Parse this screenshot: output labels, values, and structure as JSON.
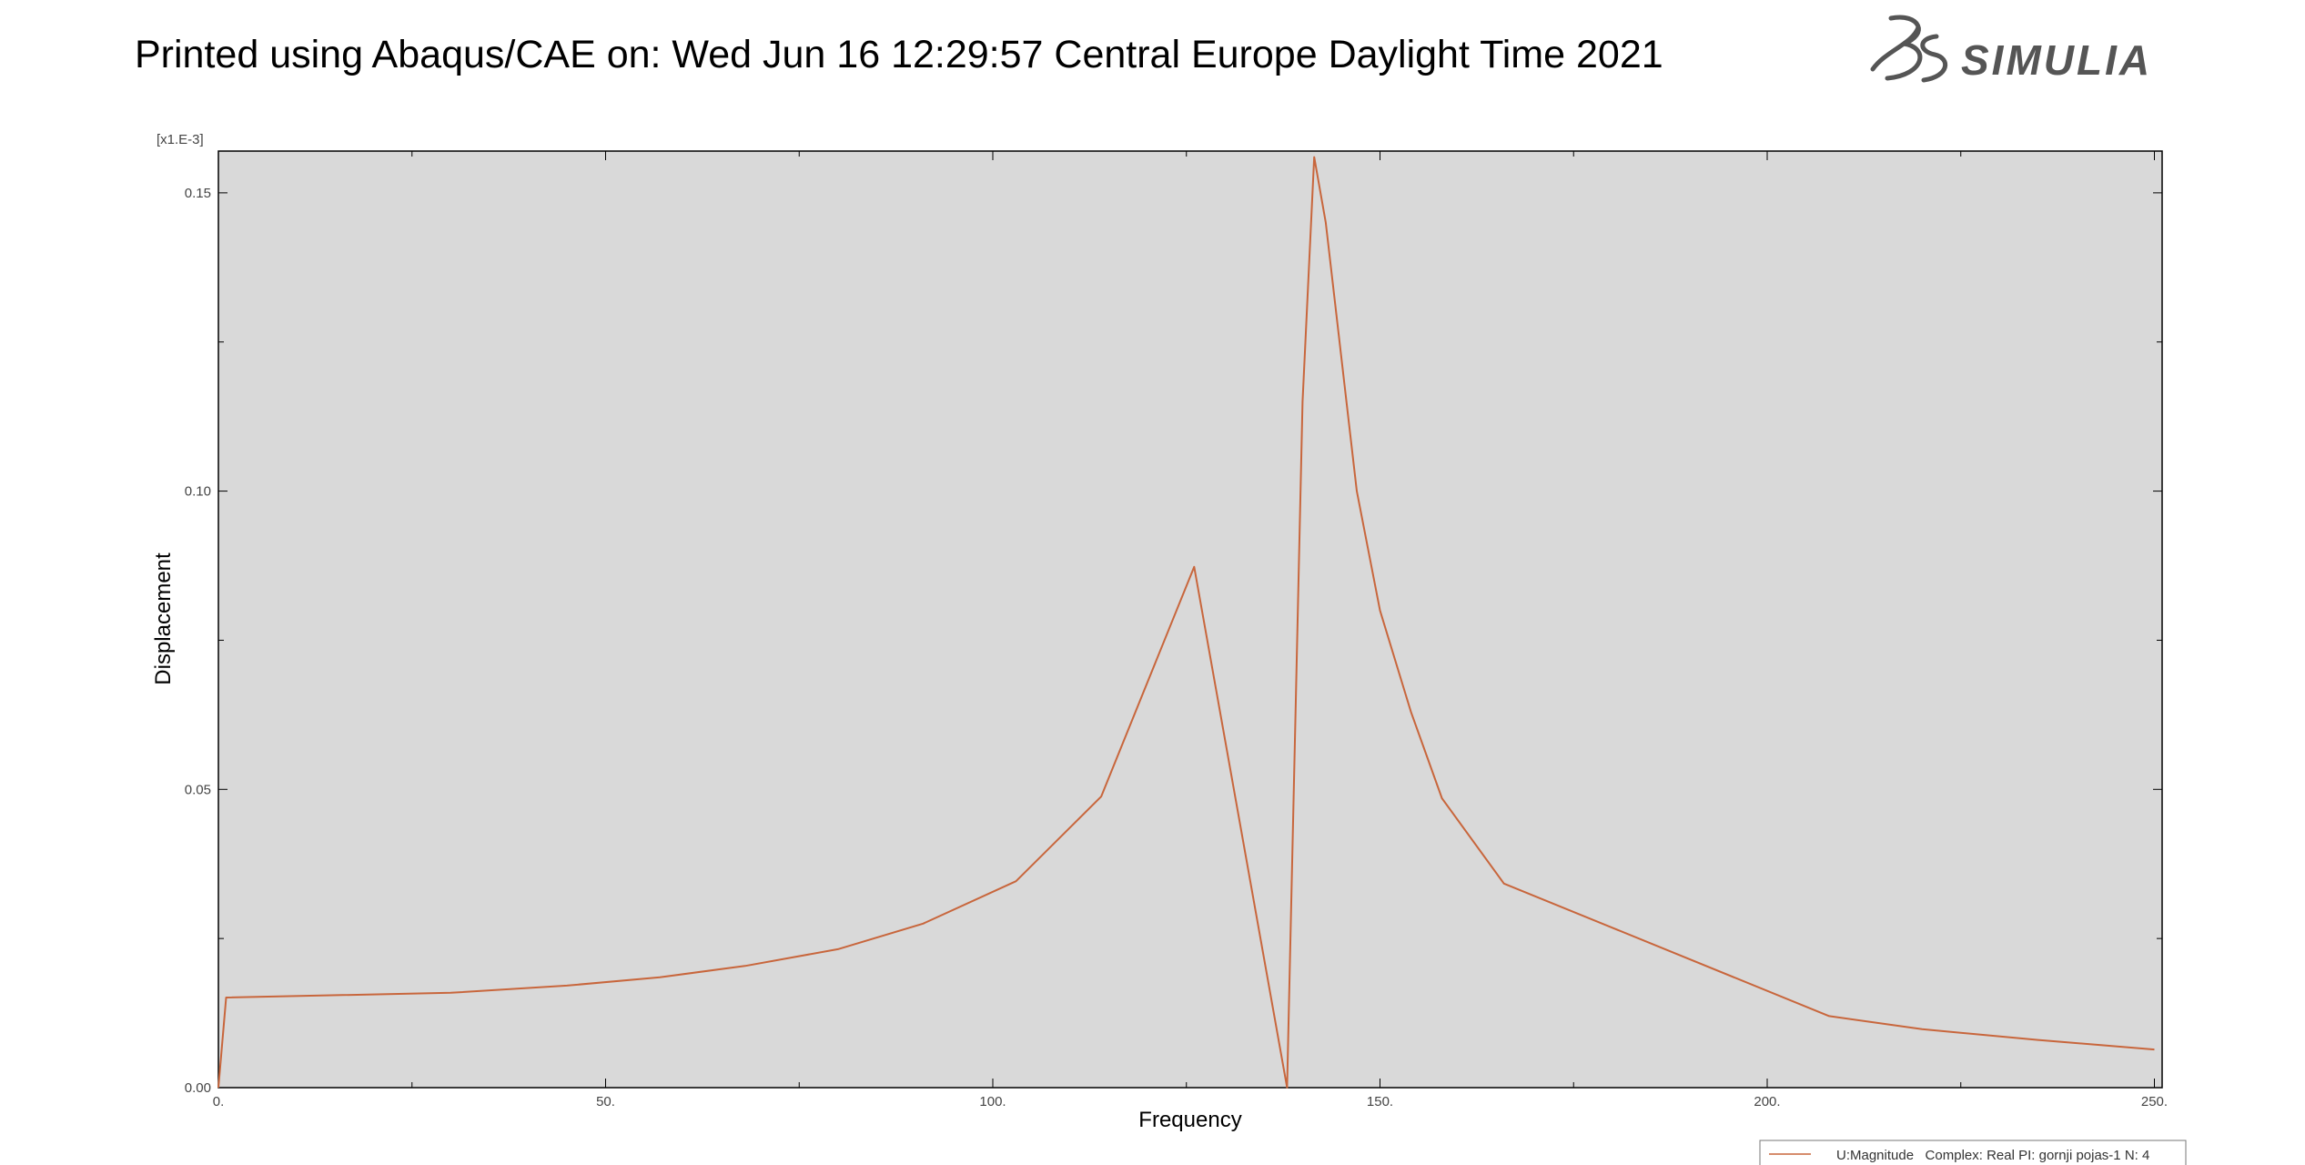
{
  "header": {
    "title": "Printed using Abaqus/CAE on: Wed Jun 16 12:29:57 Central Europe Daylight Time 2021",
    "logo_text": "SIMULIA"
  },
  "colors": {
    "plot_background": "#d9d9d9",
    "series_line": "#c8663c",
    "axis": "#000000",
    "tick_text": "#444444"
  },
  "chart_data": {
    "type": "line",
    "title": "",
    "xlabel": "Frequency",
    "ylabel": "Displacement",
    "y_multiplier_label": "[x1.E-3]",
    "xlim": [
      0,
      251
    ],
    "ylim": [
      0,
      0.157
    ],
    "x_ticks": [
      0,
      50,
      100,
      150,
      200,
      250
    ],
    "x_tick_labels": [
      "0.",
      "50.",
      "100.",
      "150.",
      "200.",
      "250."
    ],
    "y_ticks": [
      0,
      0.05,
      0.1,
      0.15
    ],
    "y_tick_labels": [
      "0.00",
      "0.05",
      "0.10",
      "0.15"
    ],
    "grid": false,
    "legend_position": "bottom-right",
    "series": [
      {
        "name": "U:Magnitude   Complex: Real PI: gornji pojas-1 N: 4",
        "x": [
          0,
          1,
          30,
          45,
          57,
          68,
          80,
          91,
          103,
          114,
          126,
          138,
          140,
          141.5,
          143,
          147,
          150,
          154,
          158,
          166,
          208,
          220,
          235,
          250
        ],
        "y": [
          0,
          0.0151,
          0.0159,
          0.0171,
          0.0185,
          0.0204,
          0.0232,
          0.0275,
          0.0346,
          0.0488,
          0.0873,
          0,
          0.115,
          0.156,
          0.145,
          0.1,
          0.08,
          0.063,
          0.0485,
          0.0342,
          0.012,
          0.0098,
          0.008,
          0.0064
        ]
      }
    ]
  }
}
